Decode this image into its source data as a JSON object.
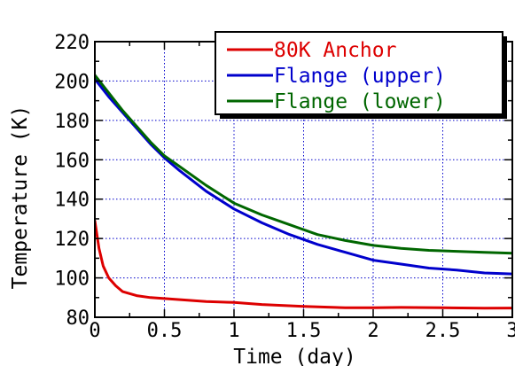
{
  "chart_data": {
    "type": "line",
    "title": "",
    "xlabel": "Time (day)",
    "ylabel": "Temperature (K)",
    "xlim": [
      0,
      3
    ],
    "ylim": [
      80,
      220
    ],
    "x_ticks": [
      0,
      0.5,
      1,
      1.5,
      2,
      2.5,
      3
    ],
    "x_tick_labels": [
      "0",
      "0.5",
      "1",
      "1.5",
      "2",
      "2.5",
      "3"
    ],
    "y_ticks": [
      80,
      100,
      120,
      140,
      160,
      180,
      200,
      220
    ],
    "y_tick_labels": [
      "80",
      "100",
      "120",
      "140",
      "160",
      "180",
      "200",
      "220"
    ],
    "grid": true,
    "legend_position": "top-right",
    "series": [
      {
        "name": "80K Anchor",
        "color": "#dd0000",
        "x": [
          0,
          0.03,
          0.06,
          0.1,
          0.15,
          0.2,
          0.3,
          0.4,
          0.6,
          0.8,
          1.0,
          1.2,
          1.5,
          1.8,
          2.0,
          2.2,
          2.5,
          2.8,
          3.0
        ],
        "y": [
          129,
          115,
          106,
          100,
          96,
          93,
          91,
          90,
          89,
          88,
          87.5,
          86.5,
          85.5,
          84.8,
          84.8,
          85,
          84.8,
          84.6,
          84.7
        ]
      },
      {
        "name": "Flange (upper)",
        "color": "#0000cc",
        "x": [
          0,
          0.1,
          0.2,
          0.3,
          0.4,
          0.5,
          0.6,
          0.8,
          1.0,
          1.2,
          1.4,
          1.6,
          1.8,
          2.0,
          2.2,
          2.4,
          2.6,
          2.8,
          3.0
        ],
        "y": [
          201,
          192,
          184,
          176,
          168,
          161,
          155,
          144,
          135,
          128,
          122,
          117,
          113,
          109,
          107,
          105,
          104,
          102.5,
          102
        ]
      },
      {
        "name": "Flange (lower)",
        "color": "#006600",
        "x": [
          0,
          0.1,
          0.2,
          0.3,
          0.4,
          0.5,
          0.6,
          0.8,
          1.0,
          1.2,
          1.4,
          1.6,
          1.8,
          2.0,
          2.2,
          2.4,
          2.6,
          2.8,
          3.0
        ],
        "y": [
          203,
          194,
          185,
          177,
          169,
          162,
          157,
          147,
          138,
          132,
          127,
          122,
          119,
          116.5,
          115,
          114,
          113.5,
          113,
          112.5
        ]
      }
    ]
  }
}
